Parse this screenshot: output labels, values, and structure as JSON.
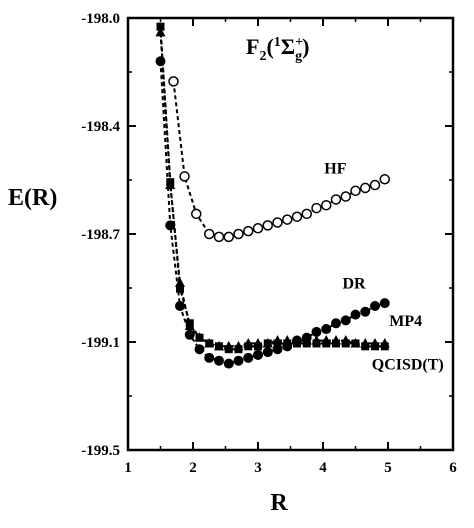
{
  "chart_data": {
    "type": "line",
    "title": {
      "main": "F",
      "sub1": "2",
      "open": "(",
      "sup1": "1",
      "sigma": "Σ",
      "sup2": "+",
      "sub2": "g",
      "close": ")"
    },
    "xlabel": "R",
    "ylabel": "E(R)",
    "xlim": [
      1,
      6
    ],
    "ylim": [
      -199.5,
      -198.0
    ],
    "xticks": [
      1,
      2,
      3,
      4,
      5,
      6
    ],
    "xtick_labels": [
      "1",
      "2",
      "3",
      "4",
      "5",
      "6"
    ],
    "yticks": [
      -198.0,
      -198.4,
      -198.7,
      -199.1,
      -199.5
    ],
    "ytick_labels": [
      "-198.0",
      "-198.4",
      "-198.7",
      "-199.1",
      "-199.5"
    ],
    "grid": false,
    "series": [
      {
        "name": "HF",
        "marker": "open-circle",
        "label_pos": [
          4.02,
          -198.54
        ],
        "x": [
          1.7,
          1.87,
          2.05,
          2.25,
          2.4,
          2.55,
          2.7,
          2.85,
          3.0,
          3.15,
          3.3,
          3.45,
          3.6,
          3.75,
          3.9,
          4.05,
          4.2,
          4.35,
          4.5,
          4.65,
          4.8,
          4.95
        ],
        "y": [
          -198.22,
          -198.55,
          -198.68,
          -198.75,
          -198.76,
          -198.76,
          -198.75,
          -198.74,
          -198.73,
          -198.72,
          -198.71,
          -198.7,
          -198.69,
          -198.68,
          -198.66,
          -198.65,
          -198.63,
          -198.62,
          -198.6,
          -198.59,
          -198.58,
          -198.56
        ]
      },
      {
        "name": "DR",
        "marker": "filled-circle",
        "label_pos": [
          4.3,
          -198.94
        ],
        "x": [
          1.5,
          1.65,
          1.8,
          1.95,
          2.1,
          2.25,
          2.4,
          2.55,
          2.7,
          2.85,
          3.0,
          3.15,
          3.3,
          3.45,
          3.6,
          3.75,
          3.9,
          4.05,
          4.2,
          4.35,
          4.5,
          4.65,
          4.8,
          4.95
        ],
        "y": [
          -198.15,
          -198.72,
          -199.0,
          -199.1,
          -199.15,
          -199.18,
          -199.19,
          -199.2,
          -199.19,
          -199.18,
          -199.17,
          -199.16,
          -199.15,
          -199.14,
          -199.12,
          -199.11,
          -199.09,
          -199.08,
          -199.06,
          -199.05,
          -199.03,
          -199.02,
          -199.0,
          -198.99
        ]
      },
      {
        "name": "MP4",
        "marker": "filled-triangle",
        "label_pos": [
          5.02,
          -199.07
        ],
        "x": [
          1.5,
          1.65,
          1.8,
          1.95,
          2.1,
          2.25,
          2.4,
          2.55,
          2.7,
          2.85,
          3.0,
          3.15,
          3.3,
          3.45,
          3.6,
          3.75,
          3.9,
          4.05,
          4.2,
          4.35,
          4.5,
          4.65,
          4.8,
          4.95
        ],
        "y": [
          -198.05,
          -198.58,
          -198.92,
          -199.07,
          -199.11,
          -199.13,
          -199.14,
          -199.14,
          -199.14,
          -199.13,
          -199.13,
          -199.13,
          -199.12,
          -199.12,
          -199.12,
          -199.12,
          -199.12,
          -199.12,
          -199.12,
          -199.12,
          -199.13,
          -199.13,
          -199.13,
          -199.13
        ]
      },
      {
        "name": "QCISD(T)",
        "marker": "filled-square",
        "label_pos": [
          4.75,
          -199.22
        ],
        "x": [
          1.5,
          1.65,
          1.8,
          1.95,
          2.1,
          2.25,
          2.4,
          2.55,
          2.7,
          2.85,
          3.0,
          3.15,
          3.3,
          3.45,
          3.6,
          3.75,
          3.9,
          4.05,
          4.2,
          4.35,
          4.5,
          4.65,
          4.8,
          4.95
        ],
        "y": [
          -198.03,
          -198.57,
          -198.94,
          -199.06,
          -199.11,
          -199.13,
          -199.14,
          -199.15,
          -199.15,
          -199.14,
          -199.14,
          -199.13,
          -199.13,
          -199.13,
          -199.13,
          -199.13,
          -199.13,
          -199.13,
          -199.13,
          -199.13,
          -199.13,
          -199.14,
          -199.14,
          -199.14
        ]
      }
    ]
  }
}
